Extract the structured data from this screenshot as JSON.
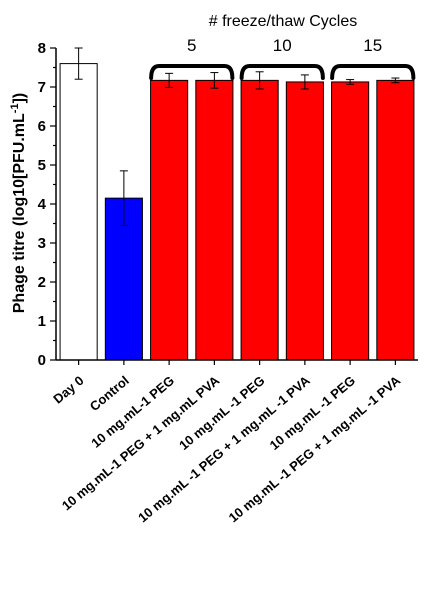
{
  "chart_data": {
    "type": "bar",
    "categories": [
      "Day 0",
      "Control",
      "10 mg.mL-1 PEG",
      "10 mg.mL-1 PEG + 1 mg.mL PVA",
      "10 mg.mL -1 PEG",
      "10 mg.mL -1 PEG + 1 mg.mL -1 PVA",
      "10 mg.mL -1 PEG",
      "10 mg.mL -1 PEG + 1 mg.mL -1 PVA"
    ],
    "values": [
      7.6,
      4.15,
      7.17,
      7.17,
      7.17,
      7.13,
      7.13,
      7.17
    ],
    "errors": [
      0.4,
      0.7,
      0.18,
      0.2,
      0.22,
      0.18,
      0.06,
      0.06
    ],
    "bar_colors": [
      "#ffffff",
      "#0000ff",
      "#ff0000",
      "#ff0000",
      "#ff0000",
      "#ff0000",
      "#ff0000",
      "#ff0000"
    ],
    "ylabel_main": "Phage titre (log10[PFU.mL",
    "ylabel_sup": "-1",
    "ylabel_end": "])",
    "ylim": [
      0,
      8
    ],
    "yticks": [
      "0",
      "1",
      "2",
      "3",
      "4",
      "5",
      "6",
      "7",
      "8"
    ],
    "group_title": "# freeze/thaw Cycles",
    "groups": [
      {
        "label": "5",
        "first": 2,
        "last": 3
      },
      {
        "label": "10",
        "first": 4,
        "last": 5
      },
      {
        "label": "15",
        "first": 6,
        "last": 7
      }
    ],
    "grid": false
  }
}
